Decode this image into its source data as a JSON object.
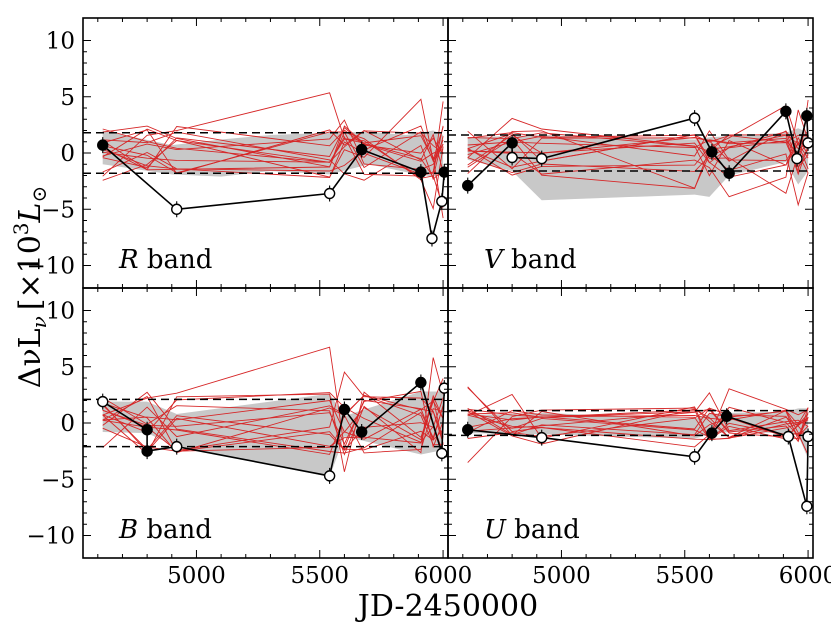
{
  "chart_data": {
    "type": "line",
    "layout": "2x2 grid, shared axes",
    "xlabel": "JD-2450000",
    "ylabel": "ΔνLν [×10³L⊙]",
    "ylabel_parts": {
      "main": "ΔνL",
      "sub": "ν",
      "bracket_open": "[×10",
      "sup": "3",
      "unit": "L",
      "unit_sub": "⊙",
      "bracket_close": "]"
    },
    "xlim": [
      4540,
      6020
    ],
    "ylim": [
      -12,
      12
    ],
    "xticks": [
      5000,
      5500,
      6000
    ],
    "yticks": [
      -10,
      -5,
      0,
      5,
      10
    ],
    "grid": false,
    "legend": "none; band names written inside each panel at lower-left",
    "panels": [
      {
        "band": "R",
        "label_italic": "R",
        "label_rest": " band",
        "dashed_lines": [
          1.8,
          -1.8
        ],
        "shaded_band": {
          "x": [
            4620,
            4900,
            5100,
            5300,
            5540,
            5700,
            5850,
            5960,
            6000
          ],
          "upper": [
            2.0,
            0.7,
            1.2,
            1.6,
            1.8,
            1.9,
            1.6,
            2.0,
            1.6
          ],
          "lower": [
            -1.0,
            -1.9,
            -2.1,
            -1.6,
            -1.9,
            -1.0,
            -1.7,
            -2.1,
            -1.9
          ]
        },
        "points": [
          {
            "x": 4620,
            "y": 0.7,
            "filled": true
          },
          {
            "x": 4920,
            "y": -5.0,
            "filled": false
          },
          {
            "x": 5540,
            "y": -3.6,
            "filled": false
          },
          {
            "x": 5670,
            "y": 0.3,
            "filled": true
          },
          {
            "x": 5910,
            "y": -1.7,
            "filled": true
          },
          {
            "x": 5955,
            "y": -7.6,
            "filled": false
          },
          {
            "x": 5995,
            "y": -4.3,
            "filled": false
          },
          {
            "x": 6005,
            "y": -1.7,
            "filled": true
          }
        ]
      },
      {
        "band": "V",
        "label_italic": "V",
        "label_rest": " band",
        "dashed_lines": [
          1.6,
          -1.6
        ],
        "shaded_band": {
          "x": [
            4620,
            4800,
            4920,
            5540,
            5600,
            5680,
            5910,
            5960,
            6000
          ],
          "upper": [
            1.4,
            1.5,
            1.6,
            1.2,
            1.4,
            1.5,
            1.8,
            2.2,
            1.8
          ],
          "lower": [
            -0.6,
            -1.6,
            -4.2,
            -3.7,
            -3.9,
            -2.0,
            -0.8,
            -2.8,
            -1.6
          ]
        },
        "points": [
          {
            "x": 4620,
            "y": -2.9,
            "filled": true
          },
          {
            "x": 4800,
            "y": 0.9,
            "filled": true
          },
          {
            "x": 4800,
            "y": -0.4,
            "filled": false
          },
          {
            "x": 4920,
            "y": -0.5,
            "filled": false
          },
          {
            "x": 5540,
            "y": 3.1,
            "filled": false
          },
          {
            "x": 5610,
            "y": 0.1,
            "filled": true
          },
          {
            "x": 5680,
            "y": -1.8,
            "filled": true
          },
          {
            "x": 5910,
            "y": 3.7,
            "filled": true
          },
          {
            "x": 5955,
            "y": -0.5,
            "filled": false
          },
          {
            "x": 5995,
            "y": 3.3,
            "filled": true
          },
          {
            "x": 6000,
            "y": 0.9,
            "filled": false
          }
        ]
      },
      {
        "band": "B",
        "label_italic": "B",
        "label_rest": " band",
        "dashed_lines": [
          2.1,
          -2.1
        ],
        "shaded_band": {
          "x": [
            4620,
            4800,
            4920,
            5540,
            5600,
            5680,
            5910,
            6000
          ],
          "upper": [
            1.9,
            1.9,
            0.8,
            2.6,
            0.6,
            1.2,
            2.8,
            2.8
          ],
          "lower": [
            -0.8,
            -0.9,
            -2.1,
            -4.8,
            -1.2,
            -1.6,
            -2.8,
            -2.4
          ]
        },
        "points": [
          {
            "x": 4620,
            "y": 1.9,
            "filled": false
          },
          {
            "x": 4800,
            "y": -0.6,
            "filled": true
          },
          {
            "x": 4800,
            "y": -2.5,
            "filled": true
          },
          {
            "x": 4920,
            "y": -2.1,
            "filled": false
          },
          {
            "x": 5540,
            "y": -4.7,
            "filled": false
          },
          {
            "x": 5600,
            "y": 1.2,
            "filled": true
          },
          {
            "x": 5670,
            "y": -0.8,
            "filled": true
          },
          {
            "x": 5910,
            "y": 3.6,
            "filled": true
          },
          {
            "x": 5995,
            "y": -2.7,
            "filled": false
          },
          {
            "x": 6005,
            "y": 3.1,
            "filled": false
          }
        ]
      },
      {
        "band": "U",
        "label_italic": "U",
        "label_rest": " band",
        "dashed_lines": [
          1.1,
          -1.1
        ],
        "shaded_band": {
          "x": [
            4620,
            4920,
            5540,
            5600,
            5680,
            5910,
            5960,
            6000
          ],
          "upper": [
            0.7,
            0.9,
            0.4,
            0.8,
            0.9,
            1.0,
            1.3,
            1.3
          ],
          "lower": [
            -0.9,
            -1.0,
            -1.4,
            -1.0,
            -0.8,
            -0.9,
            -1.1,
            -3.2
          ]
        },
        "points": [
          {
            "x": 4620,
            "y": -0.6,
            "filled": true
          },
          {
            "x": 4920,
            "y": -1.3,
            "filled": false
          },
          {
            "x": 5540,
            "y": -3.0,
            "filled": false
          },
          {
            "x": 5610,
            "y": -0.9,
            "filled": true
          },
          {
            "x": 5670,
            "y": 0.6,
            "filled": true
          },
          {
            "x": 5920,
            "y": -1.2,
            "filled": false
          },
          {
            "x": 5995,
            "y": -7.4,
            "filled": false
          },
          {
            "x": 6000,
            "y": -1.2,
            "filled": false
          }
        ]
      }
    ],
    "model_lines_note": "about fifteen thin red simulated light curves per panel"
  },
  "colors": {
    "data_line": "#000000",
    "model_lines": "#d62728",
    "shaded": "#c8c8c8",
    "dashed": "#000000"
  }
}
